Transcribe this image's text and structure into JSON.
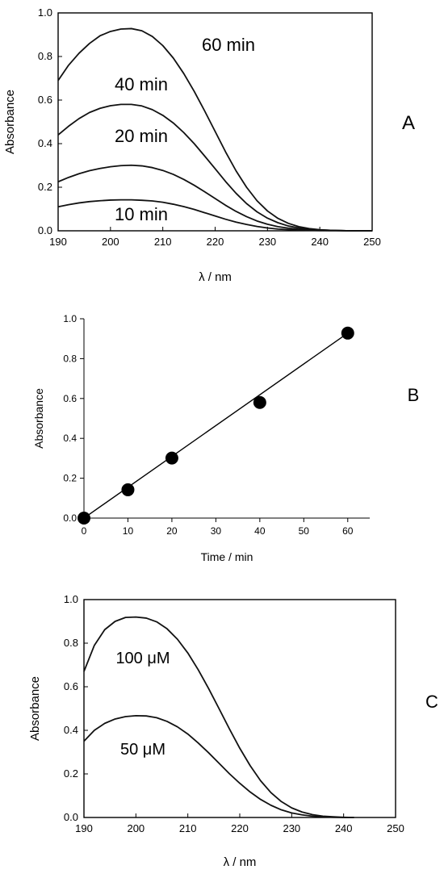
{
  "chart_data": [
    {
      "panel": "A",
      "type": "line",
      "xlabel": "λ / nm",
      "ylabel": "Absorbance",
      "xlim": [
        190,
        250
      ],
      "ylim": [
        0.0,
        1.0
      ],
      "xticks": [
        190,
        200,
        210,
        220,
        230,
        240,
        250
      ],
      "yticks": [
        0.0,
        0.2,
        0.4,
        0.6,
        0.8,
        1.0
      ],
      "x": [
        190,
        192,
        194,
        196,
        198,
        200,
        202,
        204,
        206,
        208,
        210,
        212,
        214,
        216,
        218,
        220,
        222,
        224,
        226,
        228,
        230,
        232,
        234,
        236,
        238,
        240,
        242,
        244,
        246,
        248,
        250
      ],
      "series": [
        {
          "name": "10 min",
          "values": [
            0.11,
            0.12,
            0.128,
            0.134,
            0.138,
            0.141,
            0.142,
            0.142,
            0.14,
            0.137,
            0.131,
            0.122,
            0.111,
            0.098,
            0.083,
            0.068,
            0.053,
            0.04,
            0.029,
            0.02,
            0.013,
            0.008,
            0.005,
            0.003,
            0.002,
            0.001,
            0.001,
            0.001,
            0.0,
            0.0,
            0.0
          ]
        },
        {
          "name": "20 min",
          "values": [
            0.225,
            0.245,
            0.262,
            0.276,
            0.286,
            0.294,
            0.299,
            0.301,
            0.298,
            0.29,
            0.277,
            0.259,
            0.236,
            0.209,
            0.179,
            0.148,
            0.117,
            0.089,
            0.065,
            0.045,
            0.03,
            0.019,
            0.012,
            0.007,
            0.004,
            0.002,
            0.001,
            0.001,
            0.0,
            0.0,
            0.0
          ]
        },
        {
          "name": "40 min",
          "values": [
            0.44,
            0.48,
            0.515,
            0.543,
            0.562,
            0.574,
            0.58,
            0.58,
            0.573,
            0.556,
            0.53,
            0.495,
            0.451,
            0.4,
            0.343,
            0.285,
            0.226,
            0.172,
            0.125,
            0.087,
            0.058,
            0.037,
            0.022,
            0.013,
            0.007,
            0.004,
            0.002,
            0.001,
            0.0,
            0.0,
            0.0
          ]
        },
        {
          "name": "60 min",
          "values": [
            0.69,
            0.76,
            0.815,
            0.86,
            0.895,
            0.915,
            0.926,
            0.928,
            0.918,
            0.892,
            0.85,
            0.793,
            0.722,
            0.64,
            0.55,
            0.456,
            0.362,
            0.275,
            0.2,
            0.138,
            0.091,
            0.057,
            0.034,
            0.019,
            0.01,
            0.005,
            0.002,
            0.001,
            0.0,
            0.0,
            0.0
          ]
        }
      ],
      "panel_letter": "A"
    },
    {
      "panel": "B",
      "type": "scatter",
      "xlabel": "Time / min",
      "ylabel": "Absorbance",
      "xlim": [
        0,
        65
      ],
      "ylim": [
        0.0,
        1.0
      ],
      "xticks": [
        0,
        10,
        20,
        30,
        40,
        50,
        60
      ],
      "yticks": [
        0.0,
        0.2,
        0.4,
        0.6,
        0.8,
        1.0
      ],
      "x": [
        0,
        10,
        20,
        40,
        60
      ],
      "values": [
        0.0,
        0.142,
        0.301,
        0.58,
        0.928
      ],
      "fit_line": {
        "x": [
          0,
          60
        ],
        "y": [
          0.0,
          0.928
        ]
      },
      "panel_letter": "B"
    },
    {
      "panel": "C",
      "type": "line",
      "xlabel": "λ / nm",
      "ylabel": "Absorbance",
      "xlim": [
        190,
        250
      ],
      "ylim": [
        0.0,
        1.0
      ],
      "xticks": [
        190,
        200,
        210,
        220,
        230,
        240,
        250
      ],
      "yticks": [
        0.0,
        0.2,
        0.4,
        0.6,
        0.8,
        1.0
      ],
      "x": [
        190,
        192,
        194,
        196,
        198,
        200,
        202,
        204,
        206,
        208,
        210,
        212,
        214,
        216,
        218,
        220,
        222,
        224,
        226,
        228,
        230,
        232,
        234,
        236,
        238,
        240,
        242
      ],
      "series": [
        {
          "name": "50 μM",
          "values": [
            0.35,
            0.4,
            0.432,
            0.452,
            0.463,
            0.467,
            0.466,
            0.458,
            0.441,
            0.416,
            0.383,
            0.342,
            0.297,
            0.249,
            0.201,
            0.157,
            0.117,
            0.083,
            0.056,
            0.035,
            0.021,
            0.012,
            0.006,
            0.003,
            0.001,
            0.0,
            0.0
          ]
        },
        {
          "name": "100 μM",
          "values": [
            0.67,
            0.79,
            0.862,
            0.9,
            0.918,
            0.92,
            0.915,
            0.898,
            0.866,
            0.818,
            0.755,
            0.678,
            0.592,
            0.5,
            0.407,
            0.318,
            0.238,
            0.169,
            0.114,
            0.073,
            0.044,
            0.025,
            0.013,
            0.006,
            0.003,
            0.001,
            0.0
          ]
        }
      ],
      "panel_letter": "C"
    }
  ]
}
